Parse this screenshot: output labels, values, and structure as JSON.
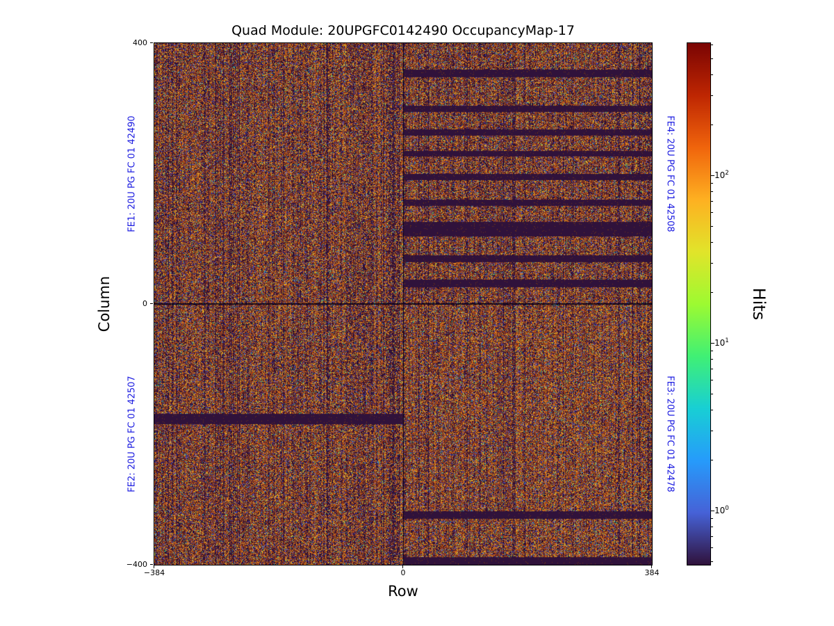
{
  "chart_data": {
    "type": "heatmap",
    "title": "Quad Module: 20UPGFC0142490 OccupancyMap-17",
    "xlabel": "Row",
    "ylabel": "Column",
    "xlim": [
      -384,
      384
    ],
    "ylim": [
      -400,
      400
    ],
    "xtick_labels": [
      "−384",
      "0",
      "384"
    ],
    "ytick_labels": [
      "400",
      "0",
      "−400"
    ],
    "grid": false,
    "fe_label_color": "#1a1ae0",
    "frontends": [
      {
        "id": "FE1",
        "label": "FE1: 20U PG FC 01 42490",
        "position": "left-top",
        "rows": [
          -384,
          0
        ],
        "columns": [
          0,
          400
        ]
      },
      {
        "id": "FE2",
        "label": "FE2: 20U PG FC 01 42507",
        "position": "left-bottom",
        "rows": [
          -384,
          0
        ],
        "columns": [
          -400,
          0
        ]
      },
      {
        "id": "FE3",
        "label": "FE3: 20U PG FC 01 42478",
        "position": "right-bottom",
        "rows": [
          0,
          384
        ],
        "columns": [
          -400,
          0
        ]
      },
      {
        "id": "FE4",
        "label": "FE4: 20U PG FC 01 42508",
        "position": "right-top",
        "rows": [
          0,
          384
        ],
        "columns": [
          0,
          400
        ]
      }
    ],
    "colorbar": {
      "label": "Hits",
      "scale": "log",
      "colormap": "turbo",
      "value_range": [
        0.5,
        600
      ],
      "ticks": [
        {
          "base": "10",
          "exp": "2",
          "value": 100
        },
        {
          "base": "10",
          "exp": "1",
          "value": 10
        },
        {
          "base": "10",
          "exp": "0",
          "value": 1
        }
      ],
      "colormap_stops": [
        {
          "pos": 0,
          "color": "#30123b"
        },
        {
          "pos": 10,
          "color": "#4662d7"
        },
        {
          "pos": 20,
          "color": "#269bfb"
        },
        {
          "pos": 30,
          "color": "#18cfd4"
        },
        {
          "pos": 40,
          "color": "#40f074"
        },
        {
          "pos": 50,
          "color": "#9dfa31"
        },
        {
          "pos": 60,
          "color": "#e1e42a"
        },
        {
          "pos": 70,
          "color": "#feb021"
        },
        {
          "pos": 80,
          "color": "#f0640c"
        },
        {
          "pos": 90,
          "color": "#be2602"
        },
        {
          "pos": 100,
          "color": "#7a0403"
        }
      ]
    },
    "occupancy": {
      "description": "Dense noise-occupancy speckle over all four front-ends; dark horizontal bands are masked/dead core-column regions.",
      "speckle_density": 0.85,
      "colors": {
        "background": "#30123b",
        "dead_dot": "#6b3416",
        "separator": "#12061c",
        "speckle": [
          {
            "color": "#c25a1d",
            "weight": 0.3
          },
          {
            "color": "#e08a22",
            "weight": 0.16
          },
          {
            "color": "#9c3a10",
            "weight": 0.16
          },
          {
            "color": "#d8bc2f",
            "weight": 0.1
          },
          {
            "color": "#4a54cc",
            "weight": 0.12
          },
          {
            "color": "#7a2a0a",
            "weight": 0.08
          },
          {
            "color": "#2fbf8f",
            "weight": 0.04
          },
          {
            "color": "#15062a",
            "weight": 0.04
          }
        ]
      },
      "dead_bands": [
        {
          "fe": "FE4",
          "rows": [
            0,
            384
          ],
          "columns": [
            348,
            359
          ]
        },
        {
          "fe": "FE4",
          "rows": [
            0,
            384
          ],
          "columns": [
            294,
            304
          ]
        },
        {
          "fe": "FE4",
          "rows": [
            0,
            384
          ],
          "columns": [
            258,
            268
          ]
        },
        {
          "fe": "FE4",
          "rows": [
            0,
            384
          ],
          "columns": [
            226,
            235
          ]
        },
        {
          "fe": "FE4",
          "rows": [
            0,
            384
          ],
          "columns": [
            190,
            199
          ]
        },
        {
          "fe": "FE4",
          "rows": [
            0,
            384
          ],
          "columns": [
            150,
            160
          ]
        },
        {
          "fe": "FE4",
          "rows": [
            0,
            384
          ],
          "columns": [
            104,
            126
          ]
        },
        {
          "fe": "FE4",
          "rows": [
            0,
            384
          ],
          "columns": [
            64,
            75
          ]
        },
        {
          "fe": "FE4",
          "rows": [
            0,
            384
          ],
          "columns": [
            26,
            37
          ]
        },
        {
          "fe": "FE2",
          "rows": [
            -384,
            0
          ],
          "columns": [
            -184,
            -168
          ]
        },
        {
          "fe": "FE3",
          "rows": [
            0,
            384
          ],
          "columns": [
            -330,
            -318
          ]
        },
        {
          "fe": "FE3",
          "rows": [
            0,
            384
          ],
          "columns": [
            -400,
            -388
          ]
        }
      ],
      "dead_lines": [
        {
          "axis": "column",
          "value": 0
        },
        {
          "axis": "row",
          "value": 0
        }
      ]
    }
  }
}
